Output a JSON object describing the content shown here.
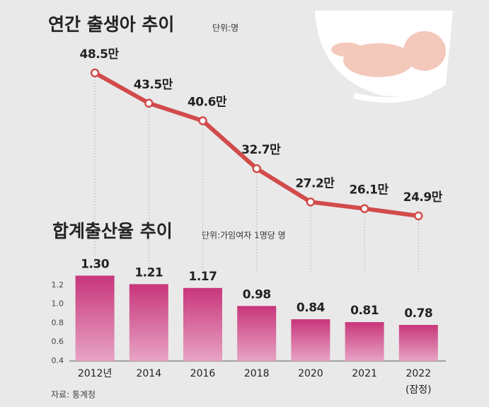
{
  "chart_data": [
    {
      "type": "line",
      "title": "연간 출생아 추이",
      "unit": "단위:명",
      "values": [
        48.5,
        43.5,
        40.6,
        32.7,
        27.2,
        26.1,
        24.9
      ],
      "value_labels": [
        "48.5만",
        "43.5만",
        "40.6만",
        "32.7만",
        "27.2만",
        "26.1만",
        "24.9만"
      ],
      "color": "#d24b4b"
    },
    {
      "type": "bar",
      "title": "합계출산율 추이",
      "unit": "단위:가임여자 1명당 명",
      "categories": [
        "2012년",
        "2014",
        "2016",
        "2018",
        "2020",
        "2021",
        "2022"
      ],
      "provisional_label": "(잠정)",
      "values": [
        1.3,
        1.21,
        1.17,
        0.98,
        0.84,
        0.81,
        0.78
      ],
      "value_labels": [
        "1.30",
        "1.21",
        "1.17",
        "0.98",
        "0.84",
        "0.81",
        "0.78"
      ],
      "color": "#c8367b",
      "ylim": [
        0.4,
        1.4
      ],
      "yticks": [
        0.4,
        0.6,
        0.8,
        {
          "value": 1.0,
          "label": "1.0"
        },
        1.2
      ]
    },
    {
      "source": "자료: 통계청"
    }
  ]
}
